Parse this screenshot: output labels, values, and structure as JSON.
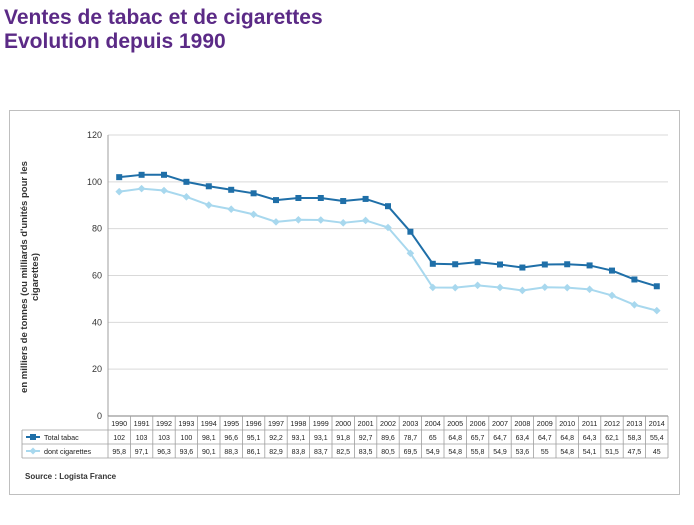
{
  "title_line1": "Ventes de tabac et de cigarettes",
  "title_line2": "Evolution depuis 1990",
  "chart_data": {
    "type": "line",
    "x": [
      "1990",
      "1991",
      "1992",
      "1993",
      "1994",
      "1995",
      "1996",
      "1997",
      "1998",
      "1999",
      "2000",
      "2001",
      "2002",
      "2003",
      "2004",
      "2005",
      "2006",
      "2007",
      "2008",
      "2009",
      "2010",
      "2011",
      "2012",
      "2013",
      "2014"
    ],
    "ylabel": "en milliers de tonnes (ou milliards d'unités pour les cigarettes)",
    "ylim": [
      0,
      120
    ],
    "yticks": [
      0,
      20,
      40,
      60,
      80,
      100,
      120
    ],
    "grid": true,
    "legend": "data-table-below",
    "series": [
      {
        "name": "Total tabac",
        "color": "#1f6fa8",
        "marker": "square",
        "values": [
          102,
          103,
          103,
          100,
          98.1,
          96.6,
          95.1,
          92.2,
          93.1,
          93.1,
          91.8,
          92.7,
          89.6,
          78.7,
          65,
          64.8,
          65.7,
          64.7,
          63.4,
          64.7,
          64.8,
          64.3,
          62.1,
          58.3,
          55.4
        ],
        "labels": [
          "102",
          "103",
          "103",
          "100",
          "98,1",
          "96,6",
          "95,1",
          "92,2",
          "93,1",
          "93,1",
          "91,8",
          "92,7",
          "89,6",
          "78,7",
          "65",
          "64,8",
          "65,7",
          "64,7",
          "63,4",
          "64,7",
          "64,8",
          "64,3",
          "62,1",
          "58,3",
          "55,4"
        ]
      },
      {
        "name": "dont cigarettes",
        "color": "#a8d8ee",
        "marker": "diamond",
        "values": [
          95.8,
          97.1,
          96.3,
          93.6,
          90.1,
          88.3,
          86.1,
          82.9,
          83.8,
          83.7,
          82.5,
          83.5,
          80.5,
          69.5,
          54.9,
          54.8,
          55.8,
          54.9,
          53.6,
          55,
          54.8,
          54.1,
          51.5,
          47.5,
          45
        ],
        "labels": [
          "95,8",
          "97,1",
          "96,3",
          "93,6",
          "90,1",
          "88,3",
          "86,1",
          "82,9",
          "83,8",
          "83,7",
          "82,5",
          "83,5",
          "80,5",
          "69,5",
          "54,9",
          "54,8",
          "55,8",
          "54,9",
          "53,6",
          "55",
          "54,8",
          "54,1",
          "51,5",
          "47,5",
          "45"
        ]
      }
    ]
  },
  "source": "Source : Logista France"
}
